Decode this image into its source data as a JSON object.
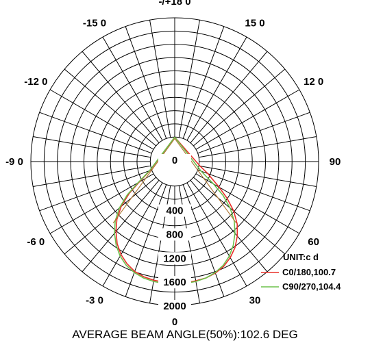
{
  "chart_data": {
    "type": "polar",
    "unit_label": "UNIT:c  d",
    "angle_labels": [
      {
        "angle": 180,
        "text": "-/+18  0"
      },
      {
        "angle": -150,
        "text": "-15  0"
      },
      {
        "angle": 150,
        "text": "15 0"
      },
      {
        "angle": -120,
        "text": "-12  0"
      },
      {
        "angle": 120,
        "text": "12 0"
      },
      {
        "angle": -90,
        "text": "-9 0"
      },
      {
        "angle": 90,
        "text": "90"
      },
      {
        "angle": -60,
        "text": "-6 0"
      },
      {
        "angle": 60,
        "text": "60"
      },
      {
        "angle": -30,
        "text": "-3 0"
      },
      {
        "angle": 30,
        "text": "30"
      },
      {
        "angle": 0,
        "text": "0"
      }
    ],
    "radial_ticks": [
      0,
      400,
      800,
      1200,
      1600,
      2000
    ],
    "radial_labels": [
      "0",
      "400",
      "800",
      "1200",
      "1600",
      "2000"
    ],
    "r_max": 2000,
    "angle_step": 10,
    "series": [
      {
        "name": "C0/180,100.7",
        "color": "#e8302a",
        "angles": [
          -90,
          -80,
          -70,
          -60,
          -55,
          -50,
          -45,
          -40,
          -35,
          -30,
          -25,
          -20,
          -15,
          -10,
          -5,
          0,
          5,
          10,
          15,
          20,
          25,
          30,
          35,
          40,
          45,
          50,
          55,
          60,
          70,
          80,
          90
        ],
        "values": [
          0,
          0,
          30,
          280,
          520,
          760,
          960,
          1120,
          1270,
          1390,
          1480,
          1550,
          1590,
          1610,
          1620,
          1620,
          1630,
          1620,
          1610,
          1580,
          1530,
          1450,
          1350,
          1220,
          1070,
          880,
          660,
          450,
          180,
          20,
          0
        ]
      },
      {
        "name": "C90/270,104.4",
        "color": "#6cc04a",
        "angles": [
          -90,
          -80,
          -70,
          -60,
          -55,
          -50,
          -45,
          -40,
          -35,
          -30,
          -25,
          -20,
          -15,
          -10,
          -5,
          0,
          5,
          10,
          15,
          20,
          25,
          30,
          35,
          40,
          45,
          50,
          55,
          60,
          70,
          80,
          90
        ],
        "values": [
          0,
          0,
          40,
          300,
          560,
          800,
          1000,
          1160,
          1300,
          1420,
          1510,
          1570,
          1610,
          1630,
          1640,
          1640,
          1640,
          1630,
          1610,
          1570,
          1510,
          1420,
          1300,
          1160,
          1000,
          800,
          580,
          340,
          60,
          0,
          0
        ]
      }
    ],
    "extra_line": {
      "color": "#b07a3a"
    }
  },
  "footer": {
    "text": "AVERAGE BEAM ANGLE(50%):102.6 DEG"
  }
}
